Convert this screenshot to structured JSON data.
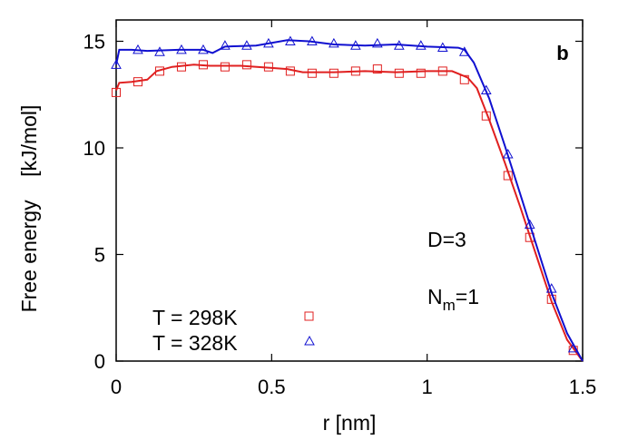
{
  "chart_data": {
    "type": "line",
    "title": "",
    "panel_label": "b",
    "xlabel": "r [nm]",
    "ylabel": "Free energy    [kJ/mol]",
    "xlim": [
      0,
      1.5
    ],
    "ylim": [
      0,
      16
    ],
    "xticks": [
      0,
      0.5,
      1,
      1.5
    ],
    "xtick_labels": [
      "0",
      "0.5",
      "1",
      "1.5"
    ],
    "yticks": [
      0,
      5,
      10,
      15
    ],
    "ytick_labels": [
      "0",
      "5",
      "10",
      "15"
    ],
    "annotations": {
      "d_label": "D=3",
      "nm_main": "N",
      "nm_sub": "m",
      "nm_value": "=1"
    },
    "legend_position": "bottom-left",
    "colors": {
      "red": "#e02020",
      "blue": "#1010d0"
    },
    "series": [
      {
        "name": "T = 298K",
        "color": "#e02020",
        "marker": "square",
        "points": [
          [
            0.0,
            12.6
          ],
          [
            0.07,
            13.1
          ],
          [
            0.14,
            13.6
          ],
          [
            0.21,
            13.8
          ],
          [
            0.28,
            13.9
          ],
          [
            0.35,
            13.8
          ],
          [
            0.42,
            13.9
          ],
          [
            0.49,
            13.8
          ],
          [
            0.56,
            13.6
          ],
          [
            0.63,
            13.5
          ],
          [
            0.7,
            13.5
          ],
          [
            0.77,
            13.6
          ],
          [
            0.84,
            13.7
          ],
          [
            0.91,
            13.5
          ],
          [
            0.98,
            13.5
          ],
          [
            1.05,
            13.6
          ],
          [
            1.12,
            13.2
          ],
          [
            1.19,
            11.5
          ],
          [
            1.26,
            8.7
          ],
          [
            1.33,
            5.8
          ],
          [
            1.4,
            2.9
          ],
          [
            1.47,
            0.5
          ]
        ],
        "curve": [
          [
            0.0,
            12.7
          ],
          [
            0.01,
            13.05
          ],
          [
            0.05,
            13.1
          ],
          [
            0.1,
            13.2
          ],
          [
            0.13,
            13.6
          ],
          [
            0.18,
            13.8
          ],
          [
            0.25,
            13.9
          ],
          [
            0.3,
            13.85
          ],
          [
            0.4,
            13.85
          ],
          [
            0.5,
            13.75
          ],
          [
            0.55,
            13.7
          ],
          [
            0.6,
            13.55
          ],
          [
            0.7,
            13.55
          ],
          [
            0.8,
            13.6
          ],
          [
            0.9,
            13.55
          ],
          [
            1.0,
            13.6
          ],
          [
            1.08,
            13.6
          ],
          [
            1.13,
            13.3
          ],
          [
            1.16,
            12.8
          ],
          [
            1.2,
            11.3
          ],
          [
            1.25,
            9.3
          ],
          [
            1.3,
            7.2
          ],
          [
            1.35,
            5.0
          ],
          [
            1.4,
            2.8
          ],
          [
            1.45,
            1.0
          ],
          [
            1.5,
            0.0
          ]
        ]
      },
      {
        "name": "T = 328K",
        "color": "#1010d0",
        "marker": "triangle",
        "points": [
          [
            0.0,
            13.9
          ],
          [
            0.07,
            14.6
          ],
          [
            0.14,
            14.5
          ],
          [
            0.21,
            14.6
          ],
          [
            0.28,
            14.6
          ],
          [
            0.35,
            14.8
          ],
          [
            0.42,
            14.8
          ],
          [
            0.49,
            14.9
          ],
          [
            0.56,
            15.0
          ],
          [
            0.63,
            15.0
          ],
          [
            0.7,
            14.9
          ],
          [
            0.77,
            14.8
          ],
          [
            0.84,
            14.9
          ],
          [
            0.91,
            14.8
          ],
          [
            0.98,
            14.8
          ],
          [
            1.05,
            14.7
          ],
          [
            1.12,
            14.5
          ],
          [
            1.19,
            12.7
          ],
          [
            1.26,
            9.7
          ],
          [
            1.33,
            6.4
          ],
          [
            1.4,
            3.4
          ],
          [
            1.47,
            0.6
          ]
        ],
        "curve": [
          [
            0.0,
            13.9
          ],
          [
            0.01,
            14.6
          ],
          [
            0.05,
            14.6
          ],
          [
            0.1,
            14.55
          ],
          [
            0.2,
            14.6
          ],
          [
            0.28,
            14.6
          ],
          [
            0.31,
            14.45
          ],
          [
            0.35,
            14.75
          ],
          [
            0.45,
            14.8
          ],
          [
            0.55,
            15.05
          ],
          [
            0.62,
            15.0
          ],
          [
            0.7,
            14.85
          ],
          [
            0.8,
            14.8
          ],
          [
            0.9,
            14.85
          ],
          [
            1.0,
            14.75
          ],
          [
            1.1,
            14.7
          ],
          [
            1.12,
            14.6
          ],
          [
            1.15,
            14.0
          ],
          [
            1.2,
            12.3
          ],
          [
            1.25,
            10.1
          ],
          [
            1.3,
            7.8
          ],
          [
            1.35,
            5.5
          ],
          [
            1.4,
            3.2
          ],
          [
            1.45,
            1.3
          ],
          [
            1.5,
            0.0
          ]
        ]
      }
    ]
  }
}
